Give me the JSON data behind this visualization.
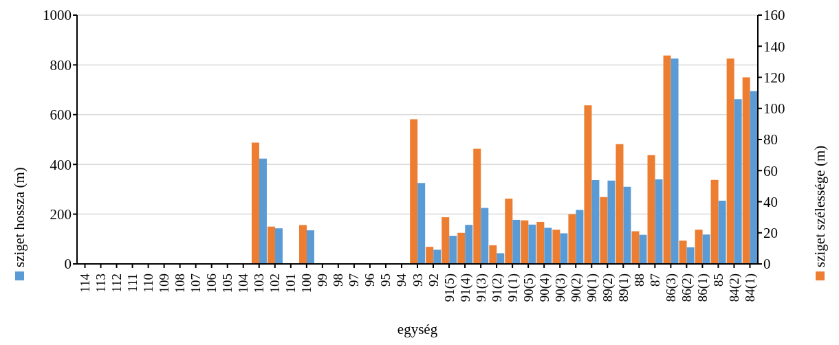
{
  "chart_data": {
    "type": "bar",
    "xlabel": "egység",
    "ylabel": "sziget hossza (m)",
    "y2label": "sziget szélessége (m)",
    "categories": [
      "114",
      "113",
      "112",
      "111",
      "110",
      "109",
      "108",
      "107",
      "106",
      "105",
      "104",
      "103",
      "102",
      "101",
      "100",
      "99",
      "98",
      "97",
      "96",
      "95",
      "94",
      "93",
      "92",
      "91(5)",
      "91(4)",
      "91(3)",
      "91(2)",
      "91(1)",
      "90(5)",
      "90(4)",
      "90(3)",
      "90(2)",
      "90(1)",
      "89(2)",
      "89(1)",
      "88",
      "87",
      "86(3)",
      "86(2)",
      "86(1)",
      "85",
      "84(2)",
      "84(1)"
    ],
    "series": [
      {
        "color": "#ed7d31",
        "axis": "y2",
        "values": [
          null,
          null,
          null,
          null,
          null,
          null,
          null,
          null,
          null,
          null,
          null,
          78,
          24,
          null,
          25,
          null,
          null,
          null,
          null,
          null,
          null,
          93,
          11,
          30,
          20,
          74,
          12,
          42,
          28,
          27,
          22,
          32,
          102,
          43,
          77,
          21,
          70,
          134,
          15,
          22,
          54,
          132,
          120
        ]
      },
      {
        "color": "#5b9bd5",
        "values": [
          null,
          null,
          null,
          null,
          null,
          null,
          null,
          null,
          null,
          null,
          null,
          423,
          143,
          null,
          135,
          null,
          null,
          null,
          null,
          null,
          null,
          325,
          57,
          113,
          157,
          225,
          43,
          177,
          158,
          145,
          123,
          217,
          337,
          335,
          310,
          117,
          340,
          825,
          67,
          118,
          254,
          662,
          695
        ]
      }
    ],
    "ylim": [
      0,
      1000
    ],
    "yticks": [
      0,
      200,
      400,
      600,
      800,
      1000
    ],
    "y2lim": [
      0,
      160
    ],
    "y2ticks": [
      0,
      20,
      40,
      60,
      80,
      100,
      120,
      140,
      160
    ],
    "grid": "y"
  }
}
